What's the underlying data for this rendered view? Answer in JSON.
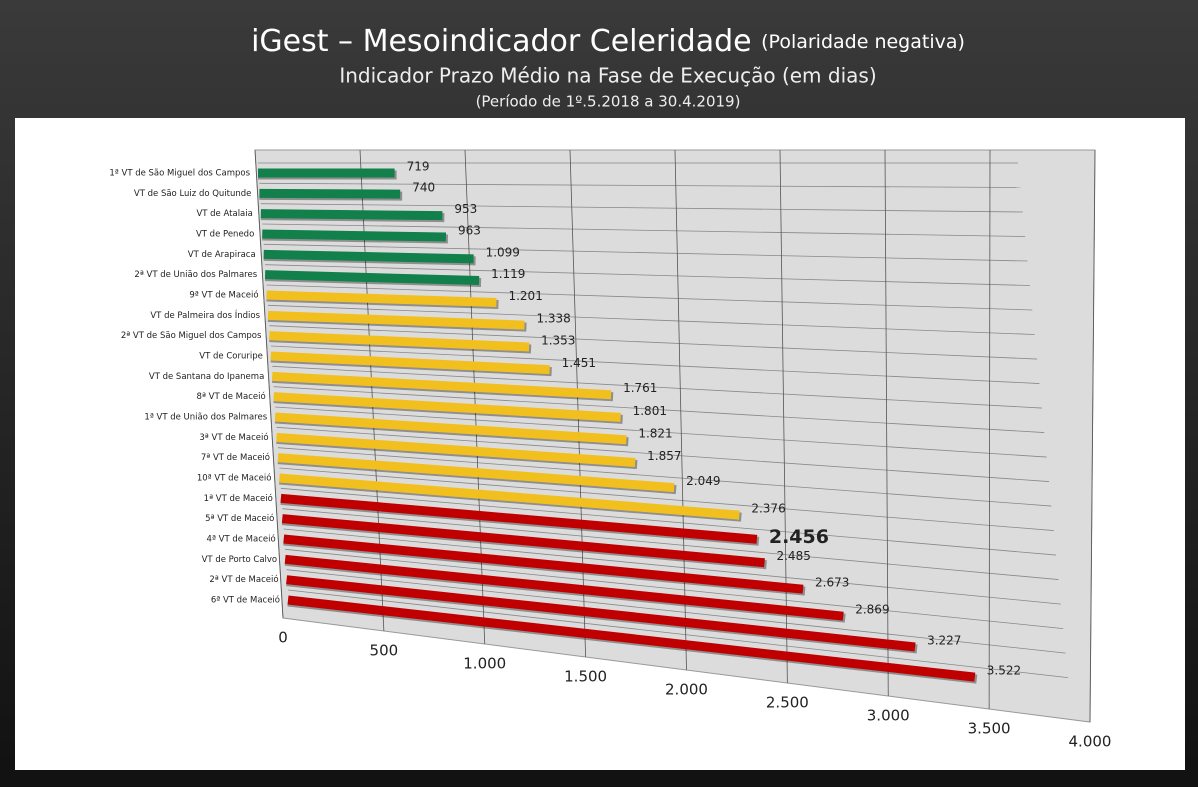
{
  "chart_data": {
    "type": "bar",
    "title": "iGest – Mesoindicador Celeridade",
    "title_note": "(Polaridade negativa)",
    "subtitle": "Indicador Prazo Médio na Fase de Execução (em dias)",
    "period": "(Período de 1º.5.2018  a  30.4.2019)",
    "categories": [
      "1ª VT de São Miguel dos Campos",
      "VT de São Luiz do Quitunde",
      "VT de Atalaia",
      "VT de Penedo",
      "VT de Arapiraca",
      "2ª VT de União dos Palmares",
      "9ª VT de Maceió",
      "VT de Palmeira dos Índios",
      "2ª VT de São Miguel dos Campos",
      "VT de Coruripe",
      "VT de Santana do Ipanema",
      "8ª VT de Maceió",
      "1ª VT de União dos Palmares",
      "3ª VT de Maceió",
      "7ª VT de Maceió",
      "10ª VT de Maceió",
      "1ª VT de Maceió",
      "5ª VT de Maceió",
      "4ª VT de Maceió",
      "VT de Porto Calvo",
      "2ª VT de Maceió",
      "6ª VT de Maceió"
    ],
    "values": [
      719,
      740,
      953,
      963,
      1099,
      1119,
      1201,
      1338,
      1353,
      1451,
      1761,
      1801,
      1821,
      1857,
      2049,
      2376,
      2456,
      2485,
      2673,
      2869,
      3227,
      3522
    ],
    "value_labels": [
      "719",
      "740",
      "953",
      "963",
      "1.099",
      "1.119",
      "1.201",
      "1.338",
      "1.353",
      "1.451",
      "1.761",
      "1.801",
      "1.821",
      "1.857",
      "2.049",
      "2.376",
      "2.456",
      "2.485",
      "2.673",
      "2.869",
      "3.227",
      "3.522"
    ],
    "colors": [
      "#11804a",
      "#11804a",
      "#11804a",
      "#11804a",
      "#11804a",
      "#11804a",
      "#f2c01e",
      "#f2c01e",
      "#f2c01e",
      "#f2c01e",
      "#f2c01e",
      "#f2c01e",
      "#f2c01e",
      "#f2c01e",
      "#f2c01e",
      "#f2c01e",
      "#c00000",
      "#c00000",
      "#c00000",
      "#c00000",
      "#c00000",
      "#c00000"
    ],
    "highlight_index": 16,
    "xlim": [
      0,
      4000
    ],
    "xticks": [
      0,
      500,
      {
        "value": 1000,
        "label": "1.000"
      },
      {
        "value": 1500,
        "label": "1.500"
      },
      {
        "value": 2000,
        "label": "2.000"
      },
      {
        "value": 2500,
        "label": "2.500"
      },
      {
        "value": 3000,
        "label": "3.000"
      },
      {
        "value": 3500,
        "label": "3.500"
      },
      {
        "value": 4000,
        "label": "4.000"
      }
    ],
    "grid": true
  }
}
